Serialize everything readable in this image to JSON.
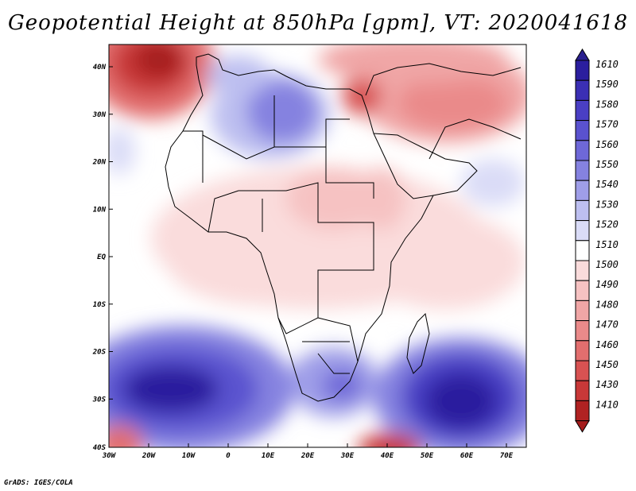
{
  "title": "Geopotential Height at 850hPa [gpm], VT: 2020041618",
  "credit": "GrADS: IGES/COLA",
  "axes": {
    "lat_ticks": [
      "40N",
      "30N",
      "20N",
      "10N",
      "EQ",
      "10S",
      "20S",
      "30S",
      "40S"
    ],
    "lon_ticks": [
      "30W",
      "20W",
      "10W",
      "0",
      "10E",
      "20E",
      "30E",
      "40E",
      "50E",
      "60E",
      "70E"
    ]
  },
  "colorbar": {
    "labels": [
      "1610",
      "1590",
      "1580",
      "1570",
      "1560",
      "1550",
      "1540",
      "1530",
      "1520",
      "1510",
      "1500",
      "1490",
      "1480",
      "1470",
      "1460",
      "1450",
      "1430",
      "1410"
    ],
    "colors": [
      "#2b1e9e",
      "#3b2fb4",
      "#4a3fc4",
      "#5a52cf",
      "#6e68d8",
      "#8582e0",
      "#9f9ee8",
      "#bdbff0",
      "#dadcf7",
      "#ffffff",
      "#fadcdc",
      "#f6c2c2",
      "#f0a6a6",
      "#ea8a8a",
      "#e26e6e",
      "#d85252",
      "#c83838",
      "#b02222"
    ],
    "max_arrow_color": "#2a1f8f",
    "min_arrow_color": "#a51b1b"
  }
}
